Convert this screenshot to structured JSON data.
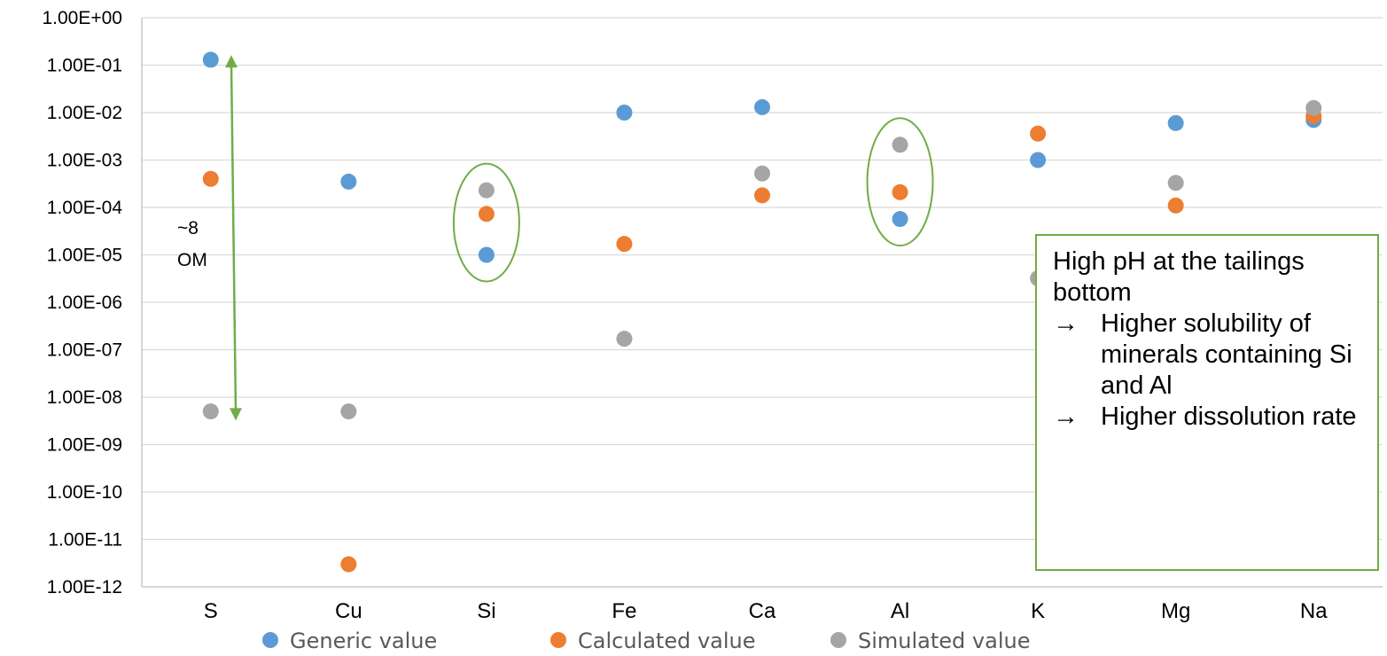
{
  "chart_data": {
    "type": "scatter",
    "y_scale": "log",
    "ylim": [
      1e-12,
      1
    ],
    "y_tick_labels": [
      "1.00E+00",
      "1.00E-01",
      "1.00E-02",
      "1.00E-03",
      "1.00E-04",
      "1.00E-05",
      "1.00E-06",
      "1.00E-07",
      "1.00E-08",
      "1.00E-09",
      "1.00E-10",
      "1.00E-11",
      "1.00E-12"
    ],
    "categories": [
      "S",
      "Cu",
      "Si",
      "Fe",
      "Ca",
      "Al",
      "K",
      "Mg",
      "Na"
    ],
    "grid": "horizontal",
    "legend_position": "bottom",
    "series": [
      {
        "name": "Generic value",
        "color": "#5b9bd5",
        "values": [
          0.13,
          0.00035,
          1e-05,
          0.01,
          0.013,
          5.7e-05,
          0.001,
          0.006,
          0.007
        ]
      },
      {
        "name": "Calculated value",
        "color": "#ed7d31",
        "values": [
          0.0004,
          3e-12,
          7.3e-05,
          1.7e-05,
          0.00018,
          0.00021,
          0.0036,
          0.00011,
          0.0085
        ]
      },
      {
        "name": "Simulated value",
        "color": "#a5a5a5",
        "values": [
          5e-09,
          5e-09,
          0.00023,
          1.7e-07,
          0.00052,
          0.0021,
          3.2e-06,
          0.00033,
          0.0125
        ]
      }
    ],
    "annotations": {
      "range_arrow": {
        "from": 0.15,
        "to": 3.5e-09,
        "color": "#70ad47",
        "label_lines": [
          "~8",
          "OM"
        ]
      },
      "highlight_ellipses": {
        "categories": [
          "Si",
          "Al"
        ],
        "color": "#70ad47"
      }
    }
  },
  "note": {
    "heading": "High pH at the tailings bottom",
    "bullets": [
      "Higher solubility of minerals containing Si and Al",
      "Higher dissolution rate"
    ],
    "arrow_glyph": "→"
  }
}
